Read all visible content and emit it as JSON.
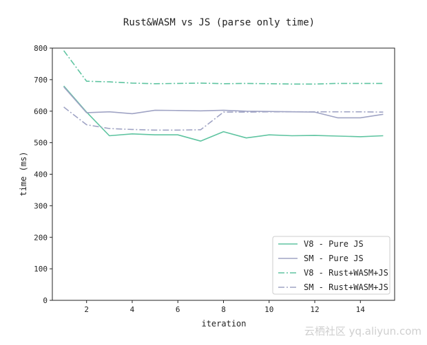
{
  "chart_data": {
    "type": "line",
    "title": "Rust&WASM vs JS (parse only time)",
    "xlabel": "iteration",
    "ylabel": "time (ms)",
    "xlim": [
      0.5,
      15.5
    ],
    "ylim": [
      0,
      800
    ],
    "xticks": [
      2,
      4,
      6,
      8,
      10,
      12,
      14
    ],
    "yticks": [
      0,
      100,
      200,
      300,
      400,
      500,
      600,
      700,
      800
    ],
    "grid": false,
    "legend_position": "lower-right",
    "x": [
      1,
      2,
      3,
      4,
      5,
      6,
      7,
      8,
      9,
      10,
      11,
      12,
      13,
      14,
      15
    ],
    "series": [
      {
        "name": "V8 - Pure JS",
        "color": "#5ec4a0",
        "style": "solid",
        "values": [
          680,
          597,
          522,
          528,
          525,
          525,
          505,
          535,
          515,
          525,
          522,
          523,
          521,
          519,
          522
        ]
      },
      {
        "name": "SM - Pure JS",
        "color": "#9fa3c4",
        "style": "solid",
        "values": [
          677,
          595,
          598,
          592,
          603,
          602,
          601,
          603,
          600,
          599,
          598,
          597,
          579,
          579,
          590
        ]
      },
      {
        "name": "V8 - Rust+WASM+JS",
        "color": "#5ec4a0",
        "style": "dashdot",
        "values": [
          792,
          695,
          693,
          689,
          687,
          688,
          689,
          687,
          688,
          687,
          686,
          686,
          688,
          688,
          688
        ]
      },
      {
        "name": "SM - Rust+WASM+JS",
        "color": "#9fa3c4",
        "style": "dashdot",
        "values": [
          613,
          557,
          545,
          542,
          540,
          540,
          541,
          597,
          597,
          598,
          598,
          598,
          598,
          598,
          597
        ]
      }
    ]
  },
  "watermark": "云栖社区 yq.aliyun.com"
}
